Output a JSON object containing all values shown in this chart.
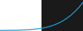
{
  "x": [
    0,
    1,
    2,
    3,
    4,
    5,
    6,
    7,
    8,
    9,
    10,
    11,
    12,
    13,
    14,
    15,
    16,
    17,
    18,
    19,
    20
  ],
  "y": [
    0.5,
    0.55,
    0.6,
    0.65,
    0.7,
    0.8,
    0.95,
    1.15,
    1.45,
    1.85,
    2.4,
    3.1,
    4.0,
    5.2,
    6.7,
    8.5,
    10.8,
    13.5,
    16.8,
    20.5,
    25.0
  ],
  "line_color": "#1a9ed4",
  "line_width": 1.0,
  "bg_left_color": "#ffffff",
  "bg_right_color": "#1a1a1a",
  "ylim": [
    0,
    27
  ],
  "xlim": [
    0,
    20
  ],
  "split_x": 10
}
